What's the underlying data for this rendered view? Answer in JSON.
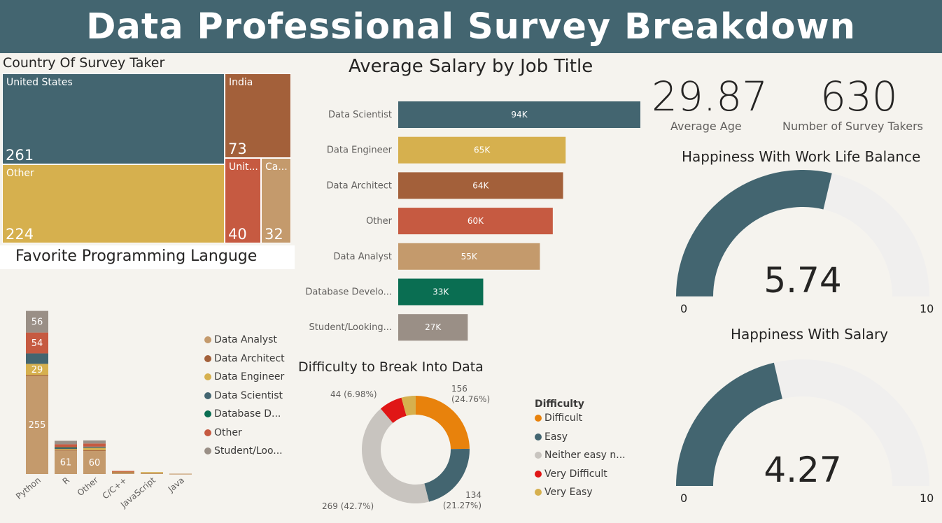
{
  "header": {
    "title": "Data Professional Survey Breakdown"
  },
  "colors": {
    "banner": "#436570",
    "teal": "#436570",
    "gold": "#d6b04e",
    "rust": "#a3603a",
    "tomato": "#c65a41",
    "tan": "#c49a6c",
    "green": "#0a6e52",
    "taupe": "#9a8f86",
    "orange": "#e8820c",
    "red": "#e01616",
    "light_grey": "#c8c4bf",
    "gauge_track": "#f0efee"
  },
  "treemap": {
    "title": "Country Of Survey Taker",
    "cells": [
      {
        "label": "United States",
        "value": "261"
      },
      {
        "label": "India",
        "value": "73"
      },
      {
        "label": "Other",
        "value": "224"
      },
      {
        "label": "Unit...",
        "value": "40"
      },
      {
        "label": "Ca...",
        "value": "32"
      }
    ]
  },
  "cards": {
    "avg_age": {
      "value": "29.87",
      "label": "Average Age"
    },
    "takers": {
      "value": "630",
      "label": "Number of Survey Takers"
    }
  },
  "gauges": {
    "work_life": {
      "title": "Happiness With Work Life Balance",
      "value": 5.74,
      "value_text": "5.74",
      "min": "0",
      "max": "10"
    },
    "salary": {
      "title": "Happiness With Salary",
      "value": 4.27,
      "value_text": "4.27",
      "min": "0",
      "max": "10"
    }
  },
  "chart_data": [
    {
      "id": "salary_by_title",
      "type": "bar",
      "orientation": "horizontal",
      "title": "Average Salary by Job Title",
      "categories": [
        "Data Scientist",
        "Data Engineer",
        "Data Architect",
        "Other",
        "Data Analyst",
        "Database Develo...",
        "Student/Looking..."
      ],
      "values": [
        94,
        65,
        64,
        60,
        55,
        33,
        27
      ],
      "labels": [
        "94K",
        "65K",
        "64K",
        "60K",
        "55K",
        "33K",
        "27K"
      ],
      "colors": [
        "#436570",
        "#d6b04e",
        "#a3603a",
        "#c65a41",
        "#c49a6c",
        "#0a6e52",
        "#9a8f86"
      ]
    },
    {
      "id": "fav_language",
      "type": "bar",
      "stacked": true,
      "title": "Favorite Programming Languge",
      "categories": [
        "Python",
        "R",
        "Other",
        "C/C++",
        "JavaScript",
        "Java"
      ],
      "series": [
        {
          "name": "Data Analyst",
          "color": "#c49a6c",
          "values": [
            255,
            61,
            60,
            5,
            4,
            1
          ]
        },
        {
          "name": "Data Architect",
          "color": "#a3603a",
          "values": [
            1,
            2,
            2,
            1,
            0,
            0
          ]
        },
        {
          "name": "Data Engineer",
          "color": "#d6b04e",
          "values": [
            29,
            2,
            6,
            1,
            1,
            0
          ]
        },
        {
          "name": "Data Scientist",
          "color": "#436570",
          "values": [
            27,
            3,
            3,
            0,
            0,
            0
          ]
        },
        {
          "name": "Database D...",
          "color": "#0a6e52",
          "values": [
            0,
            1,
            0,
            0,
            0,
            0
          ]
        },
        {
          "name": "Other",
          "color": "#c65a41",
          "values": [
            54,
            8,
            8,
            1,
            0,
            0
          ]
        },
        {
          "name": "Student/Loo...",
          "color": "#9a8f86",
          "values": [
            56,
            9,
            8,
            0,
            0,
            0
          ]
        }
      ],
      "data_labels": [
        "56",
        "54",
        "29",
        "255",
        "61",
        "60"
      ],
      "ylim": [
        0,
        440
      ],
      "legend": "right"
    },
    {
      "id": "difficulty",
      "type": "pie",
      "donut": true,
      "title": "Difficulty to Break Into Data",
      "legend_title": "Difficulty",
      "legend": "right",
      "slices": [
        {
          "name": "Difficult",
          "value": 156,
          "color": "#e8820c",
          "label": "156\n(24.76%)"
        },
        {
          "name": "Easy",
          "value": 134,
          "color": "#436570",
          "label": "134\n(21.27%)"
        },
        {
          "name": "Neither easy n...",
          "value": 269,
          "color": "#c8c4bf",
          "label": "269 (42.7%)"
        },
        {
          "name": "Very Difficult",
          "value": 44,
          "color": "#e01616",
          "label": "44 (6.98%)"
        },
        {
          "name": "Very Easy",
          "value": 27,
          "color": "#d6b04e",
          "label": ""
        }
      ]
    }
  ]
}
